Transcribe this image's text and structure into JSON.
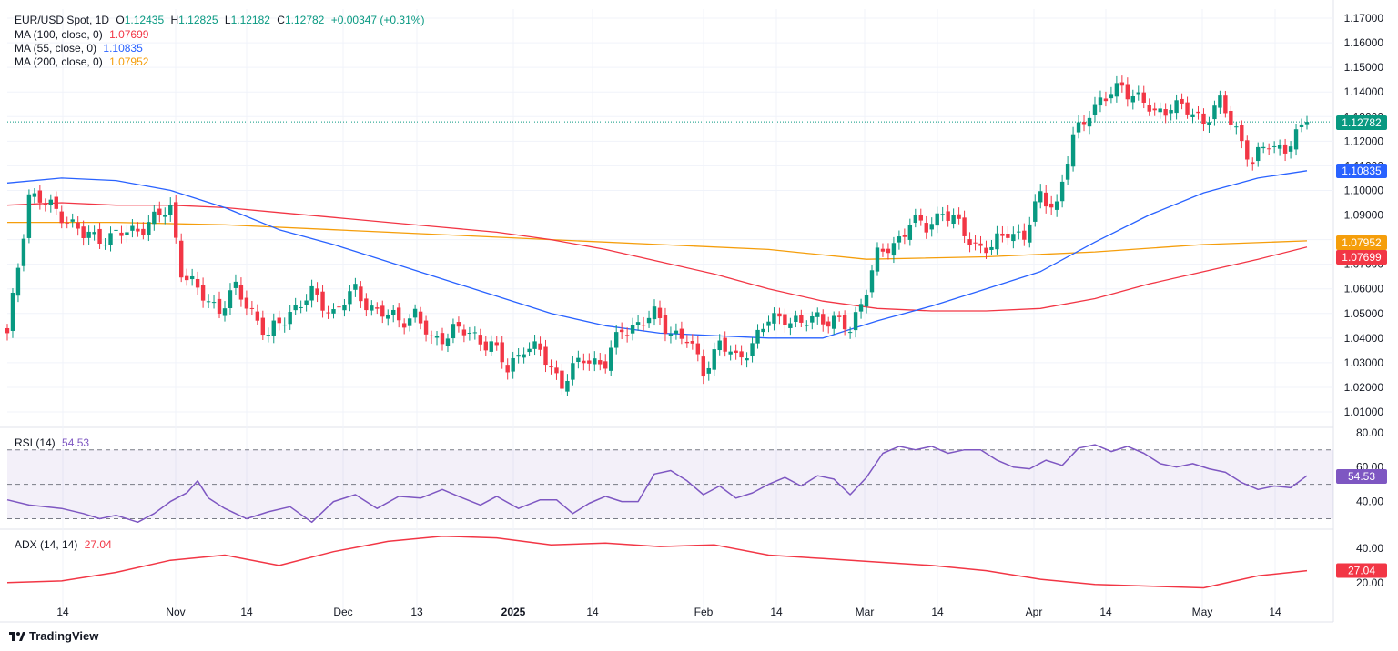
{
  "header": {
    "symbol": "EUR/USD Spot, 1D",
    "open_label": "O",
    "open": "1.12435",
    "high_label": "H",
    "high": "1.12825",
    "low_label": "L",
    "low": "1.12182",
    "close_label": "C",
    "close": "1.12782",
    "change": "+0.00347 (+0.31%)"
  },
  "indicators": {
    "ma100": {
      "label": "MA (100, close, 0)",
      "value": "1.07699",
      "color": "#f23645"
    },
    "ma55": {
      "label": "MA (55, close, 0)",
      "value": "1.10835",
      "color": "#2962ff"
    },
    "ma200": {
      "label": "MA (200, close, 0)",
      "value": "1.07952",
      "color": "#f59e0b"
    },
    "rsi": {
      "label": "RSI (14)",
      "value": "54.53",
      "color": "#7e57c2"
    },
    "adx": {
      "label": "ADX (14, 14)",
      "value": "27.04",
      "color": "#f23645"
    }
  },
  "brand": {
    "name": "TradingView"
  },
  "chart_data": {
    "type": "candlestick",
    "title": "EUR/USD Spot, 1D",
    "price_axis": {
      "ticks": [
        "1.17000",
        "1.16000",
        "1.15000",
        "1.14000",
        "1.13000",
        "1.12000",
        "1.11000",
        "1.10000",
        "1.09000",
        "1.08000",
        "1.07000",
        "1.06000",
        "1.05000",
        "1.04000",
        "1.03000",
        "1.02000",
        "1.01000"
      ],
      "range": [
        1.0,
        1.17
      ]
    },
    "time_axis": {
      "ticks": [
        "14",
        "Nov",
        "14",
        "Dec",
        "13",
        "2025",
        "14",
        "Feb",
        "14",
        "Mar",
        "14",
        "Apr",
        "14",
        "May",
        "14"
      ],
      "bold_tick": "2025"
    },
    "price_labels": [
      {
        "value": "1.12782",
        "color": "#089981"
      },
      {
        "value": "1.10835",
        "color": "#2962ff"
      },
      {
        "value": "1.07952",
        "color": "#f59e0b"
      },
      {
        "value": "1.07699",
        "color": "#f23645"
      }
    ],
    "close_anchors": [
      [
        0,
        1.0405
      ],
      [
        4,
        1.0985
      ],
      [
        10,
        1.0905
      ],
      [
        14,
        1.0815
      ],
      [
        19,
        1.081
      ],
      [
        23,
        1.0835
      ],
      [
        27,
        1.088
      ],
      [
        30,
        1.093
      ],
      [
        32,
        1.068
      ],
      [
        35,
        1.0585
      ],
      [
        39,
        1.052
      ],
      [
        42,
        1.0595
      ],
      [
        45,
        1.051
      ],
      [
        48,
        1.0405
      ],
      [
        52,
        1.051
      ],
      [
        56,
        1.0575
      ],
      [
        60,
        1.0505
      ],
      [
        64,
        1.059
      ],
      [
        68,
        1.0505
      ],
      [
        72,
        1.0475
      ],
      [
        75,
        1.0495
      ],
      [
        78,
        1.0385
      ],
      [
        82,
        1.0435
      ],
      [
        85,
        1.0415
      ],
      [
        89,
        1.0375
      ],
      [
        92,
        1.027
      ],
      [
        95,
        1.037
      ],
      [
        98,
        1.034
      ],
      [
        102,
        1.022
      ],
      [
        106,
        1.0315
      ],
      [
        110,
        1.03
      ],
      [
        113,
        1.043
      ],
      [
        116,
        1.046
      ],
      [
        119,
        1.049
      ],
      [
        122,
        1.043
      ],
      [
        125,
        1.039
      ],
      [
        128,
        1.027
      ],
      [
        131,
        1.038
      ],
      [
        134,
        1.031
      ],
      [
        137,
        1.038
      ],
      [
        140,
        1.047
      ],
      [
        143,
        1.049
      ],
      [
        146,
        1.045
      ],
      [
        149,
        1.049
      ],
      [
        152,
        1.047
      ],
      [
        155,
        1.043
      ],
      [
        157,
        1.055
      ],
      [
        160,
        1.073
      ],
      [
        163,
        1.078
      ],
      [
        166,
        1.087
      ],
      [
        169,
        1.085
      ],
      [
        172,
        1.092
      ],
      [
        175,
        1.085
      ],
      [
        178,
        1.078
      ],
      [
        181,
        1.076
      ],
      [
        184,
        1.084
      ],
      [
        187,
        1.081
      ],
      [
        190,
        1.098
      ],
      [
        193,
        1.094
      ],
      [
        196,
        1.121
      ],
      [
        199,
        1.133
      ],
      [
        202,
        1.137
      ],
      [
        205,
        1.143
      ],
      [
        208,
        1.137
      ],
      [
        211,
        1.131
      ],
      [
        214,
        1.135
      ],
      [
        217,
        1.132
      ],
      [
        220,
        1.129
      ],
      [
        223,
        1.135
      ],
      [
        226,
        1.125
      ],
      [
        229,
        1.111
      ],
      [
        232,
        1.119
      ],
      [
        235,
        1.117
      ],
      [
        238,
        1.124
      ],
      [
        239,
        1.1278
      ]
    ],
    "ma55": [
      [
        0,
        1.103
      ],
      [
        10,
        1.105
      ],
      [
        20,
        1.104
      ],
      [
        30,
        1.1
      ],
      [
        40,
        1.093
      ],
      [
        50,
        1.084
      ],
      [
        60,
        1.078
      ],
      [
        70,
        1.071
      ],
      [
        80,
        1.064
      ],
      [
        90,
        1.057
      ],
      [
        100,
        1.05
      ],
      [
        110,
        1.045
      ],
      [
        120,
        1.042
      ],
      [
        130,
        1.041
      ],
      [
        140,
        1.04
      ],
      [
        150,
        1.04
      ],
      [
        160,
        1.047
      ],
      [
        170,
        1.053
      ],
      [
        180,
        1.06
      ],
      [
        190,
        1.067
      ],
      [
        200,
        1.079
      ],
      [
        210,
        1.09
      ],
      [
        220,
        1.099
      ],
      [
        230,
        1.105
      ],
      [
        239,
        1.108
      ]
    ],
    "ma100": [
      [
        0,
        1.094
      ],
      [
        10,
        1.095
      ],
      [
        20,
        1.094
      ],
      [
        30,
        1.094
      ],
      [
        40,
        1.093
      ],
      [
        50,
        1.091
      ],
      [
        60,
        1.089
      ],
      [
        70,
        1.087
      ],
      [
        80,
        1.085
      ],
      [
        90,
        1.083
      ],
      [
        100,
        1.08
      ],
      [
        110,
        1.076
      ],
      [
        120,
        1.071
      ],
      [
        130,
        1.066
      ],
      [
        140,
        1.06
      ],
      [
        150,
        1.055
      ],
      [
        160,
        1.052
      ],
      [
        170,
        1.051
      ],
      [
        180,
        1.051
      ],
      [
        190,
        1.052
      ],
      [
        200,
        1.056
      ],
      [
        210,
        1.062
      ],
      [
        220,
        1.067
      ],
      [
        230,
        1.072
      ],
      [
        239,
        1.077
      ]
    ],
    "ma200": [
      [
        0,
        1.087
      ],
      [
        20,
        1.087
      ],
      [
        40,
        1.086
      ],
      [
        60,
        1.084
      ],
      [
        80,
        1.082
      ],
      [
        100,
        1.08
      ],
      [
        120,
        1.078
      ],
      [
        140,
        1.076
      ],
      [
        158,
        1.072
      ],
      [
        180,
        1.073
      ],
      [
        200,
        1.075
      ],
      [
        220,
        1.078
      ],
      [
        239,
        1.0795
      ]
    ],
    "rsi": {
      "ticks": [
        "80.00",
        "60.00",
        "40.00"
      ],
      "range": [
        25,
        82
      ],
      "band": [
        30,
        70
      ],
      "midline": 50,
      "series": [
        [
          0,
          41
        ],
        [
          4,
          38
        ],
        [
          10,
          36
        ],
        [
          14,
          33
        ],
        [
          17,
          30
        ],
        [
          20,
          32
        ],
        [
          24,
          28
        ],
        [
          27,
          33
        ],
        [
          30,
          40
        ],
        [
          33,
          45
        ],
        [
          35,
          52
        ],
        [
          37,
          42
        ],
        [
          40,
          36
        ],
        [
          44,
          30
        ],
        [
          48,
          34
        ],
        [
          52,
          37
        ],
        [
          56,
          28
        ],
        [
          60,
          40
        ],
        [
          64,
          44
        ],
        [
          68,
          36
        ],
        [
          72,
          43
        ],
        [
          76,
          42
        ],
        [
          80,
          47
        ],
        [
          83,
          43
        ],
        [
          87,
          38
        ],
        [
          90,
          43
        ],
        [
          94,
          36
        ],
        [
          98,
          41
        ],
        [
          101,
          41
        ],
        [
          104,
          33
        ],
        [
          107,
          39
        ],
        [
          110,
          43
        ],
        [
          113,
          40
        ],
        [
          116,
          40
        ],
        [
          119,
          56
        ],
        [
          122,
          58
        ],
        [
          125,
          52
        ],
        [
          128,
          44
        ],
        [
          131,
          49
        ],
        [
          134,
          42
        ],
        [
          137,
          45
        ],
        [
          140,
          50
        ],
        [
          143,
          54
        ],
        [
          146,
          49
        ],
        [
          149,
          55
        ],
        [
          152,
          53
        ],
        [
          155,
          44
        ],
        [
          158,
          54
        ],
        [
          161,
          68
        ],
        [
          164,
          72
        ],
        [
          167,
          70
        ],
        [
          170,
          72
        ],
        [
          173,
          68
        ],
        [
          176,
          70
        ],
        [
          179,
          70
        ],
        [
          182,
          64
        ],
        [
          185,
          60
        ],
        [
          188,
          59
        ],
        [
          191,
          64
        ],
        [
          194,
          61
        ],
        [
          197,
          71
        ],
        [
          200,
          73
        ],
        [
          203,
          69
        ],
        [
          206,
          72
        ],
        [
          209,
          68
        ],
        [
          212,
          62
        ],
        [
          215,
          60
        ],
        [
          218,
          62
        ],
        [
          221,
          59
        ],
        [
          224,
          57
        ],
        [
          227,
          51
        ],
        [
          230,
          47
        ],
        [
          233,
          49
        ],
        [
          236,
          48
        ],
        [
          239,
          55
        ]
      ]
    },
    "adx": {
      "ticks": [
        "40.00",
        "20.00"
      ],
      "range": [
        12,
        50
      ],
      "series": [
        [
          0,
          20
        ],
        [
          10,
          21
        ],
        [
          20,
          26
        ],
        [
          30,
          33
        ],
        [
          40,
          36
        ],
        [
          50,
          30
        ],
        [
          60,
          38
        ],
        [
          70,
          44
        ],
        [
          80,
          47
        ],
        [
          90,
          46
        ],
        [
          100,
          42
        ],
        [
          110,
          43
        ],
        [
          120,
          41
        ],
        [
          130,
          42
        ],
        [
          140,
          36
        ],
        [
          150,
          34
        ],
        [
          160,
          32
        ],
        [
          170,
          30
        ],
        [
          180,
          27
        ],
        [
          190,
          22
        ],
        [
          200,
          19
        ],
        [
          210,
          18
        ],
        [
          220,
          17
        ],
        [
          230,
          24
        ],
        [
          239,
          27
        ]
      ]
    },
    "n_bars": 240
  }
}
